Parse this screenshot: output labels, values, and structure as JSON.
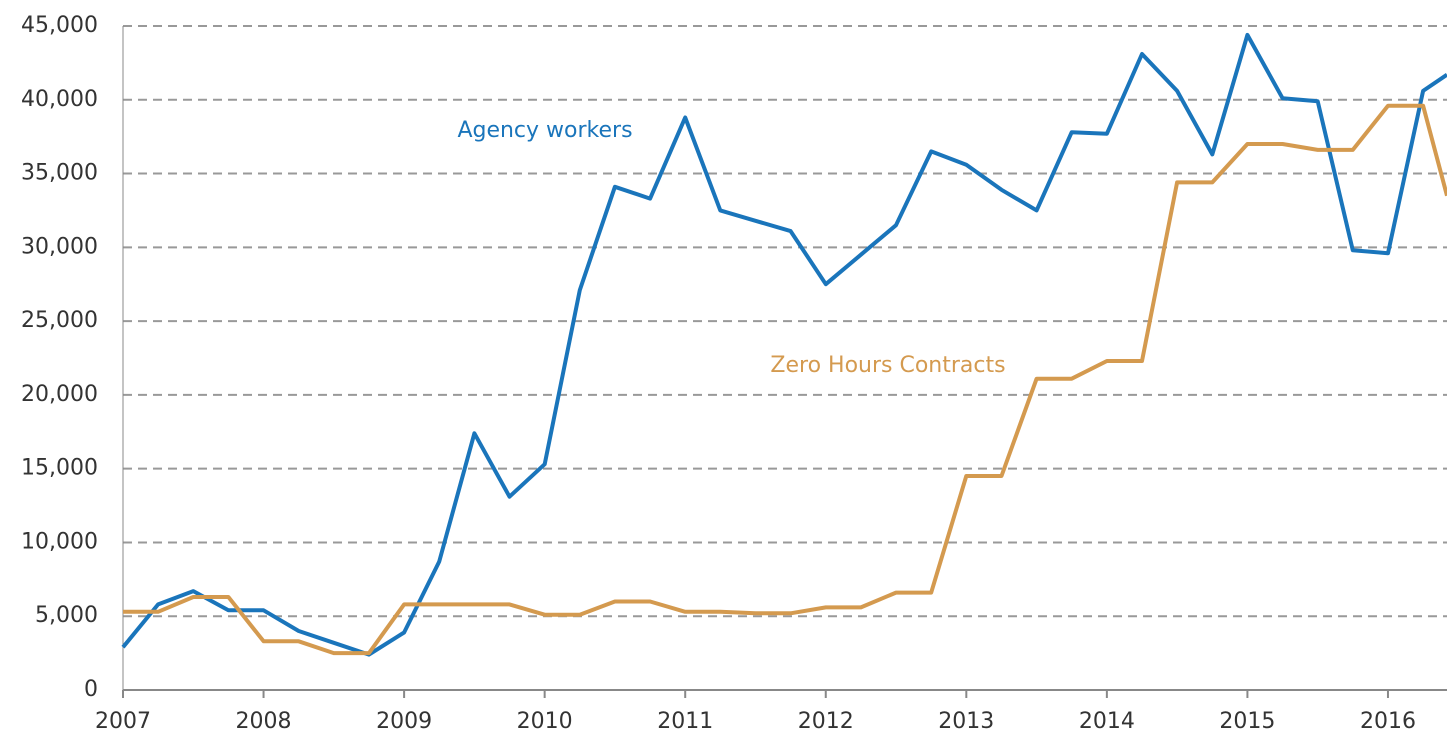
{
  "chart_data": {
    "type": "line",
    "x": [
      2007,
      2007.25,
      2007.5,
      2007.75,
      2008,
      2008.25,
      2008.5,
      2008.75,
      2009,
      2009.25,
      2009.5,
      2009.75,
      2010,
      2010.25,
      2010.5,
      2010.75,
      2011,
      2011.25,
      2011.5,
      2011.75,
      2012,
      2012.25,
      2012.5,
      2012.75,
      2013,
      2013.25,
      2013.5,
      2013.75,
      2014,
      2014.25,
      2014.5,
      2014.75,
      2015,
      2015.25,
      2015.5,
      2015.75,
      2016,
      2016.25,
      2016.42
    ],
    "series": [
      {
        "name": "Agency workers",
        "color": "#1a75bb",
        "values": [
          2900,
          5800,
          6700,
          5400,
          5400,
          4000,
          3200,
          2400,
          3900,
          8700,
          17400,
          13100,
          15300,
          27100,
          34100,
          33300,
          38800,
          32500,
          31800,
          31100,
          27500,
          29500,
          31500,
          36500,
          35600,
          33900,
          32500,
          37800,
          37700,
          43100,
          40600,
          36300,
          44400,
          40100,
          39900,
          29800,
          29600,
          40600,
          41700
        ]
      },
      {
        "name": "Zero Hours Contracts",
        "color": "#d49a4f",
        "values": [
          5300,
          5300,
          6300,
          6300,
          3300,
          3300,
          2500,
          2500,
          5800,
          5800,
          5800,
          5800,
          5100,
          5100,
          6000,
          6000,
          5300,
          5300,
          5200,
          5200,
          5600,
          5600,
          6600,
          6600,
          14500,
          14500,
          21100,
          21100,
          22300,
          22300,
          34400,
          34400,
          37000,
          37000,
          36600,
          36600,
          39600,
          39600,
          33500
        ]
      }
    ],
    "xlim": [
      2007,
      2016.42
    ],
    "xticks": [
      2007,
      2008,
      2009,
      2010,
      2011,
      2012,
      2013,
      2014,
      2015,
      2016
    ],
    "ylim": [
      0,
      45000
    ],
    "yticks": [
      0,
      {
        "value": 5000,
        "label": "5,000"
      },
      {
        "value": 10000,
        "label": "10,000"
      },
      {
        "value": 15000,
        "label": "15,000"
      },
      {
        "value": 20000,
        "label": "20,000"
      },
      {
        "value": 25000,
        "label": "25,000"
      },
      {
        "value": 30000,
        "label": "30,000"
      },
      {
        "value": 35000,
        "label": "35,000"
      },
      {
        "value": 40000,
        "label": "40,000"
      },
      {
        "value": 45000,
        "label": "45,000"
      }
    ],
    "grid": true
  }
}
